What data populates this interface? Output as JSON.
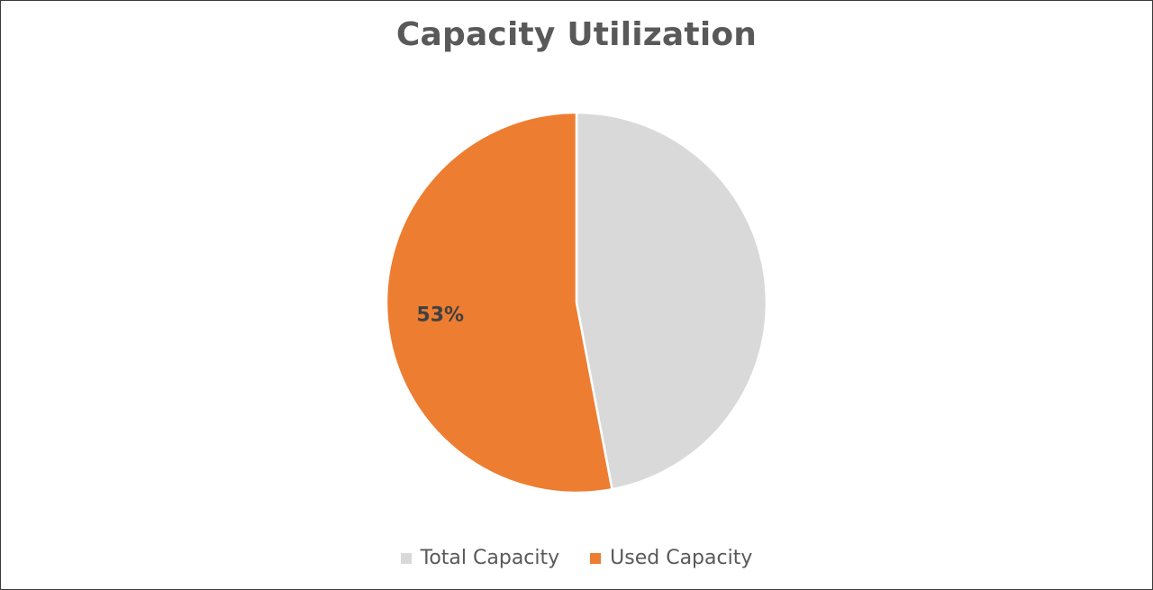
{
  "chart_data": {
    "type": "pie",
    "title": "Capacity Utilization",
    "categories": [
      "Total Capacity",
      "Used Capacity"
    ],
    "values": [
      47,
      53
    ],
    "colors": [
      "#d9d9d9",
      "#ed7d31"
    ],
    "data_labels": [
      "",
      "53%"
    ],
    "legend_position": "bottom"
  }
}
